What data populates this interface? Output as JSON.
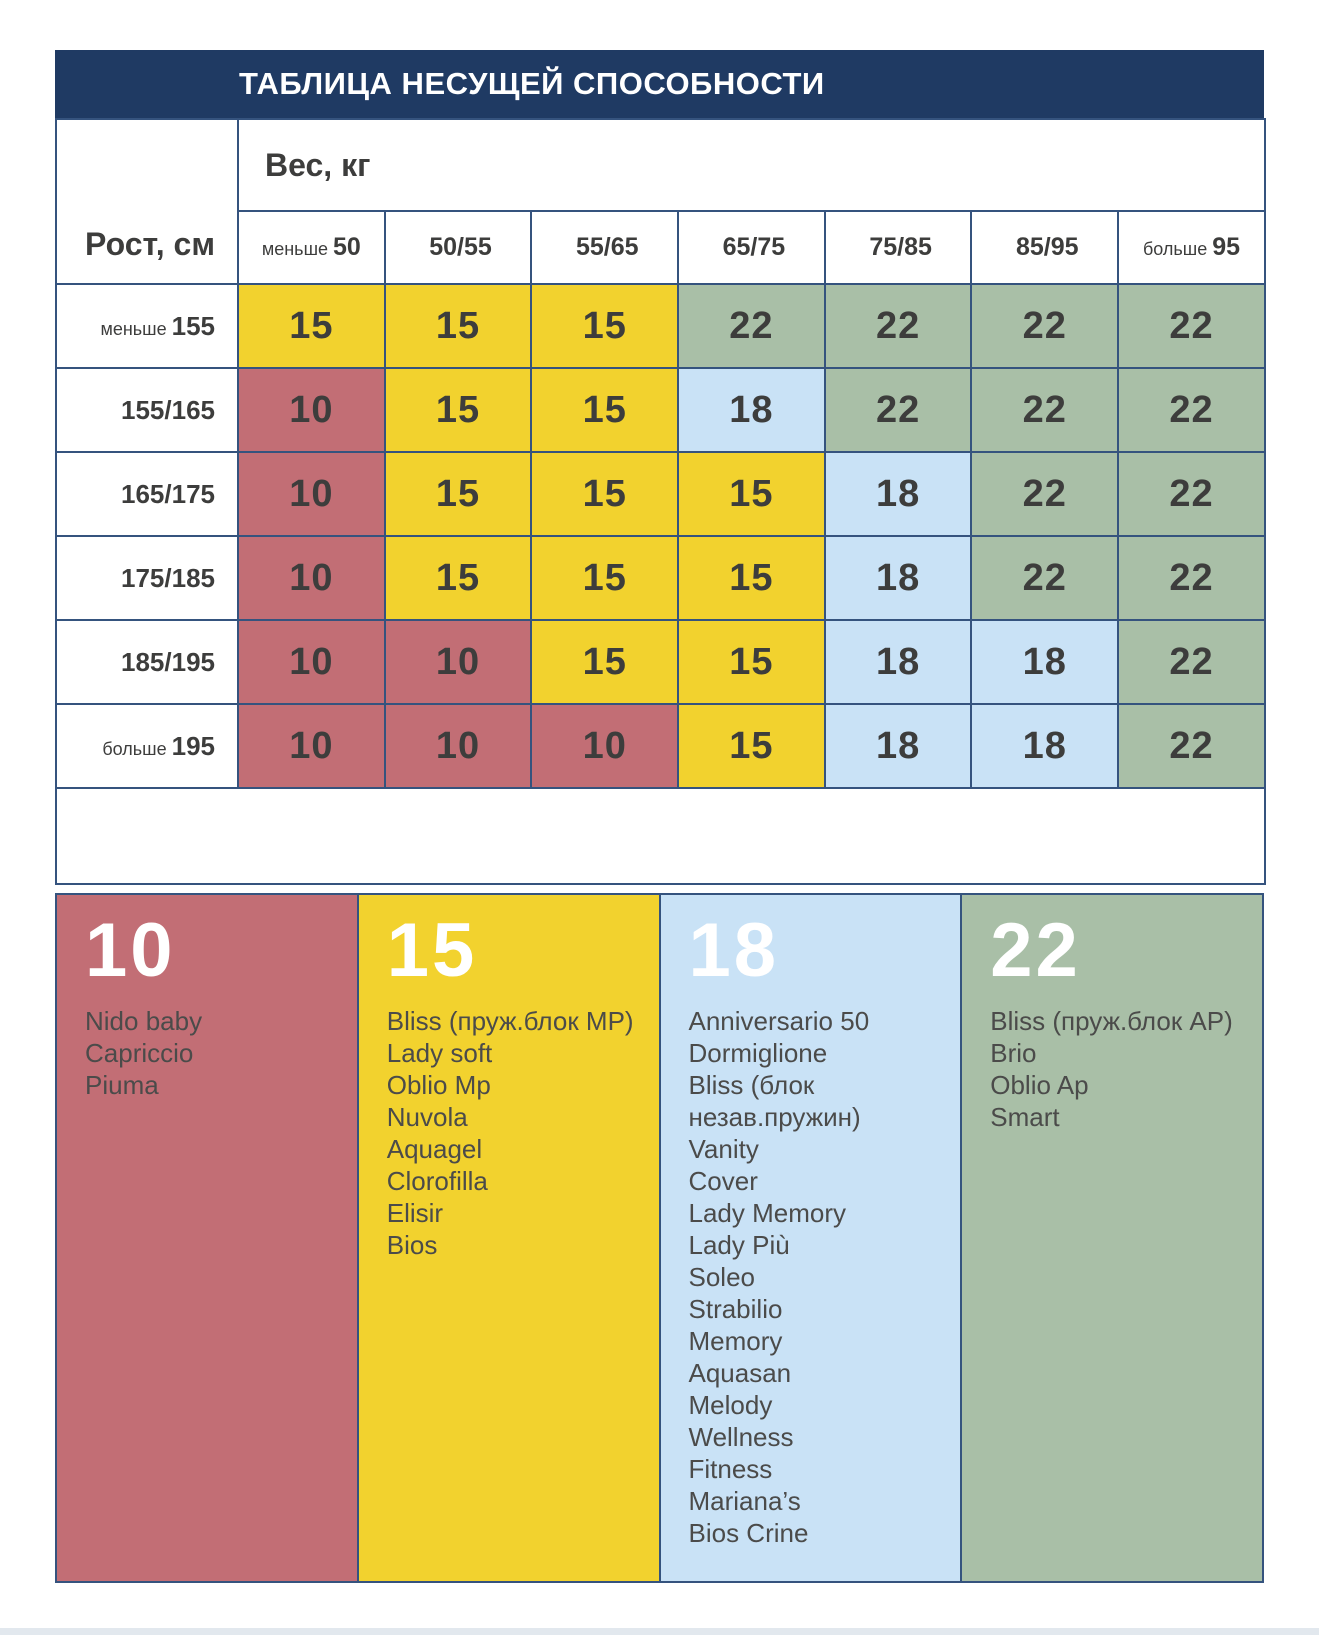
{
  "page": {
    "bottom_bar_color": "#e2e8ee"
  },
  "chart_data": {
    "type": "table",
    "title": "ТАБЛИЦА НЕСУЩЕЙ СПОСОБНОСТИ",
    "header_bg": "#1f3a63",
    "border_color": "#35537e",
    "x_axis": {
      "label": "Вес, кг",
      "categories": [
        "меньше 50",
        "50/55",
        "55/65",
        "65/75",
        "75/85",
        "85/95",
        "больше 95"
      ]
    },
    "y_axis": {
      "label": "Рост, см",
      "categories": [
        "меньше 155",
        "155/165",
        "165/175",
        "175/185",
        "185/195",
        "больше 195"
      ]
    },
    "columns": [
      {
        "prefix": "меньше",
        "num": "50"
      },
      {
        "prefix": "",
        "num": "50/55"
      },
      {
        "prefix": "",
        "num": "55/65"
      },
      {
        "prefix": "",
        "num": "65/75"
      },
      {
        "prefix": "",
        "num": "75/85"
      },
      {
        "prefix": "",
        "num": "85/95"
      },
      {
        "prefix": "больше",
        "num": "95"
      }
    ],
    "rows": [
      {
        "prefix": "меньше",
        "num": "155"
      },
      {
        "prefix": "",
        "num": "155/165"
      },
      {
        "prefix": "",
        "num": "165/175"
      },
      {
        "prefix": "",
        "num": "175/185"
      },
      {
        "prefix": "",
        "num": "185/195"
      },
      {
        "prefix": "больше",
        "num": "195"
      }
    ],
    "values": [
      [
        15,
        15,
        15,
        22,
        22,
        22,
        22
      ],
      [
        10,
        15,
        15,
        18,
        22,
        22,
        22
      ],
      [
        10,
        15,
        15,
        15,
        18,
        22,
        22
      ],
      [
        10,
        15,
        15,
        15,
        18,
        22,
        22
      ],
      [
        10,
        10,
        15,
        15,
        18,
        18,
        22
      ],
      [
        10,
        10,
        10,
        15,
        18,
        18,
        22
      ]
    ],
    "value_colors": {
      "10": "#c26e75",
      "15": "#f2d22e",
      "18": "#c9e2f6",
      "22": "#a9bfa7"
    },
    "legend": [
      {
        "value": "10",
        "color": "#c26e75",
        "items": [
          "Nido baby",
          "Capriccio",
          "Piuma"
        ]
      },
      {
        "value": "15",
        "color": "#f2d22e",
        "items": [
          "Bliss (пруж.блок MP)",
          "Lady soft",
          "Oblio Mp",
          "Nuvola",
          "Aquagel",
          "Clorofilla",
          "Elisir",
          "Bios"
        ]
      },
      {
        "value": "18",
        "color": "#c9e2f6",
        "items": [
          "Anniversario 50",
          "Dormiglione",
          "Bliss (блок незав.пружин)",
          "Vanity",
          "Cover",
          "Lady Memory",
          "Lady Più",
          "Soleo",
          "Strabilio",
          "Memory",
          "Aquasan",
          "Melody",
          "Wellness",
          "Fitness",
          "Mariana’s",
          "Bios Crine"
        ]
      },
      {
        "value": "22",
        "color": "#a9bfa7",
        "items": [
          "Bliss (пруж.блок AP)",
          "Brio",
          "Oblio Ap",
          "Smart"
        ]
      }
    ]
  }
}
